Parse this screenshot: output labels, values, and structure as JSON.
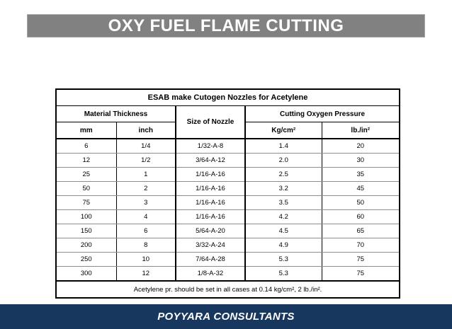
{
  "header": {
    "title": "OXY FUEL FLAME CUTTING"
  },
  "table": {
    "title": "ESAB make Cutogen Nozzles for Acetylene",
    "groups": {
      "material": "Material Thickness",
      "nozzle": "Size of Nozzle",
      "pressure": "Cutting Oxygen Pressure"
    },
    "sub_headers": {
      "mm": "mm",
      "inch": "inch",
      "kg": "Kg/cm²",
      "lb": "lb./in²"
    },
    "columns_order": [
      "mm",
      "inch",
      "nozzle",
      "kg",
      "lb"
    ],
    "rows": [
      {
        "mm": "6",
        "inch": "1/4",
        "nozzle": "1/32-A-8",
        "kg": "1.4",
        "lb": "20"
      },
      {
        "mm": "12",
        "inch": "1/2",
        "nozzle": "3/64-A-12",
        "kg": "2.0",
        "lb": "30"
      },
      {
        "mm": "25",
        "inch": "1",
        "nozzle": "1/16-A-16",
        "kg": "2.5",
        "lb": "35"
      },
      {
        "mm": "50",
        "inch": "2",
        "nozzle": "1/16-A-16",
        "kg": "3.2",
        "lb": "45"
      },
      {
        "mm": "75",
        "inch": "3",
        "nozzle": "1/16-A-16",
        "kg": "3.5",
        "lb": "50"
      },
      {
        "mm": "100",
        "inch": "4",
        "nozzle": "1/16-A-16",
        "kg": "4.2",
        "lb": "60"
      },
      {
        "mm": "150",
        "inch": "6",
        "nozzle": "5/64-A-20",
        "kg": "4.5",
        "lb": "65"
      },
      {
        "mm": "200",
        "inch": "8",
        "nozzle": "3/32-A-24",
        "kg": "4.9",
        "lb": "70"
      },
      {
        "mm": "250",
        "inch": "10",
        "nozzle": "7/64-A-28",
        "kg": "5.3",
        "lb": "75"
      },
      {
        "mm": "300",
        "inch": "12",
        "nozzle": "1/8-A-32",
        "kg": "5.3",
        "lb": "75"
      }
    ],
    "note": "Acetylene pr. should be set in all cases at 0.14 kg/cm², 2 lb./in²."
  },
  "footer": {
    "text": "POYYARA CONSULTANTS"
  },
  "colors": {
    "title_bar_bg": "#818181",
    "title_text": "#ffffff",
    "footer_bar_bg": "#17375e",
    "footer_text": "#ffffff",
    "table_border": "#000000",
    "page_bg": "#ffffff"
  }
}
